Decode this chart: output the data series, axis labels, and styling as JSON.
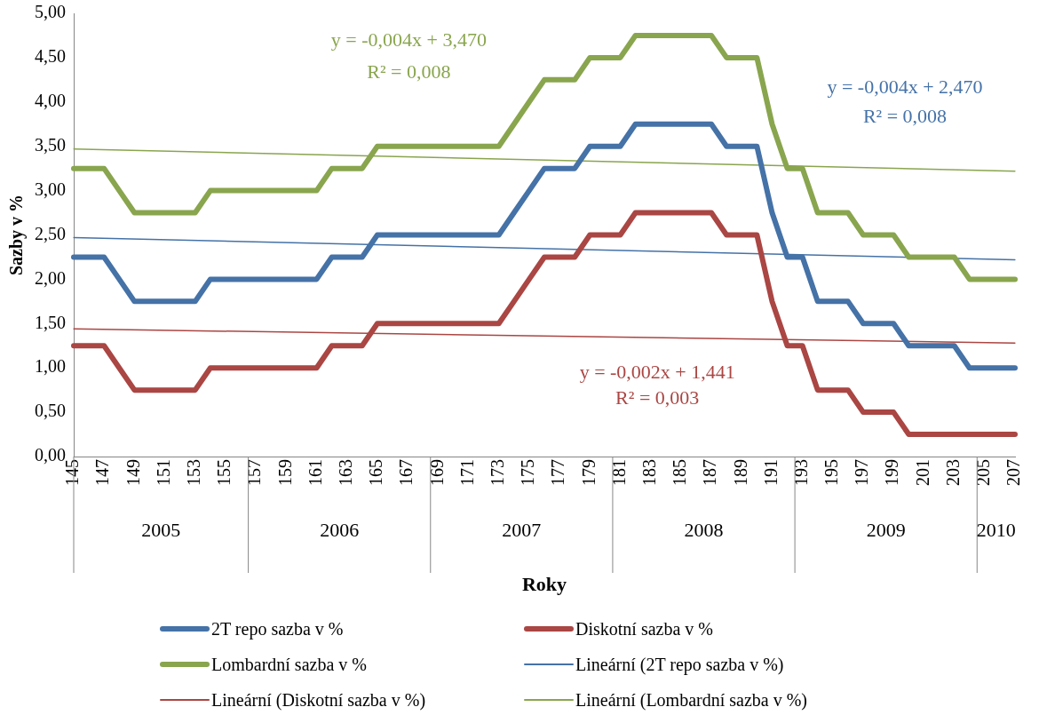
{
  "chart_data": {
    "type": "line",
    "xlabel": "Roky",
    "ylabel": "Sazby v %",
    "categories": [
      "145",
      null,
      "147",
      null,
      "149",
      null,
      "151",
      null,
      "153",
      null,
      "155",
      null,
      "157",
      null,
      "159",
      null,
      "161",
      null,
      "163",
      null,
      "165",
      null,
      "167",
      null,
      "169",
      null,
      "171",
      null,
      "173",
      null,
      "175",
      null,
      "177",
      null,
      "179",
      null,
      "181",
      null,
      "183",
      null,
      "185",
      null,
      "187",
      null,
      "189",
      null,
      "191",
      null,
      "193",
      null,
      "195",
      null,
      "197",
      null,
      "199",
      null,
      "201",
      null,
      "203",
      null,
      "205",
      null,
      "207"
    ],
    "series": [
      {
        "name": "2T repo sazba v %",
        "color": "#4572a7",
        "values": [
          2.25,
          2.25,
          2.25,
          2,
          1.75,
          1.75,
          1.75,
          1.75,
          1.75,
          2,
          2,
          2,
          2,
          2,
          2,
          2,
          2,
          2.25,
          2.25,
          2.25,
          2.5,
          2.5,
          2.5,
          2.5,
          2.5,
          2.5,
          2.5,
          2.5,
          2.5,
          2.75,
          3,
          3.25,
          3.25,
          3.25,
          3.5,
          3.5,
          3.5,
          3.75,
          3.75,
          3.75,
          3.75,
          3.75,
          3.75,
          3.5,
          3.5,
          3.5,
          2.75,
          2.25,
          2.25,
          1.75,
          1.75,
          1.75,
          1.5,
          1.5,
          1.5,
          1.25,
          1.25,
          1.25,
          1.25,
          1,
          1,
          1,
          1
        ]
      },
      {
        "name": "Diskotní sazba v %",
        "color": "#aa4643",
        "values": [
          1.25,
          1.25,
          1.25,
          1,
          0.75,
          0.75,
          0.75,
          0.75,
          0.75,
          1,
          1,
          1,
          1,
          1,
          1,
          1,
          1,
          1.25,
          1.25,
          1.25,
          1.5,
          1.5,
          1.5,
          1.5,
          1.5,
          1.5,
          1.5,
          1.5,
          1.5,
          1.75,
          2,
          2.25,
          2.25,
          2.25,
          2.5,
          2.5,
          2.5,
          2.75,
          2.75,
          2.75,
          2.75,
          2.75,
          2.75,
          2.5,
          2.5,
          2.5,
          1.75,
          1.25,
          1.25,
          0.75,
          0.75,
          0.75,
          0.5,
          0.5,
          0.5,
          0.25,
          0.25,
          0.25,
          0.25,
          0.25,
          0.25,
          0.25,
          0.25
        ]
      },
      {
        "name": "Lombardní sazba v %",
        "color": "#89a54e",
        "values": [
          3.25,
          3.25,
          3.25,
          3,
          2.75,
          2.75,
          2.75,
          2.75,
          2.75,
          3,
          3,
          3,
          3,
          3,
          3,
          3,
          3,
          3.25,
          3.25,
          3.25,
          3.5,
          3.5,
          3.5,
          3.5,
          3.5,
          3.5,
          3.5,
          3.5,
          3.5,
          3.75,
          4,
          4.25,
          4.25,
          4.25,
          4.5,
          4.5,
          4.5,
          4.75,
          4.75,
          4.75,
          4.75,
          4.75,
          4.75,
          4.5,
          4.5,
          4.5,
          3.75,
          3.25,
          3.25,
          2.75,
          2.75,
          2.75,
          2.5,
          2.5,
          2.5,
          2.25,
          2.25,
          2.25,
          2.25,
          2,
          2,
          2,
          2
        ]
      },
      {
        "name": "Lineární (2T repo sazba v %)",
        "color": "#4572a7",
        "x": [
          "145",
          "207"
        ],
        "values": [
          2.47,
          2.22
        ]
      },
      {
        "name": "Lineární (Diskotní sazba v %)",
        "color": "#aa4643",
        "x": [
          "145",
          "207"
        ],
        "values": [
          1.44,
          1.28
        ]
      },
      {
        "name": "Lineární (Lombardní sazba v %)",
        "color": "#89a54e",
        "x": [
          "145",
          "207"
        ],
        "values": [
          3.47,
          3.22
        ]
      }
    ],
    "ylim": [
      0,
      5
    ],
    "yticks": [
      {
        "value": 0,
        "label": "0,00"
      },
      {
        "value": 0.5,
        "label": "0,50"
      },
      {
        "value": 1,
        "label": "1,00"
      },
      {
        "value": 1.5,
        "label": "1,50"
      },
      {
        "value": 2,
        "label": "2,00"
      },
      {
        "value": 2.5,
        "label": "2,50"
      },
      {
        "value": 3,
        "label": "3,00"
      },
      {
        "value": 3.5,
        "label": "3,50"
      },
      {
        "value": 4,
        "label": "4,00"
      },
      {
        "value": 4.5,
        "label": "4,50"
      },
      {
        "value": 5,
        "label": "5,00"
      }
    ],
    "annotations": [
      "y = -0,004x + 2,470",
      "R² = 0,008",
      "y = -0,002x + 1,441",
      "R² = 0,003",
      "y = -0,004x + 3,470",
      "R² = 0,008",
      "2005",
      "2006",
      "2007",
      "2008",
      "2009",
      "2010"
    ],
    "grid": false,
    "legend": "bottom",
    "line_style": "solid"
  }
}
